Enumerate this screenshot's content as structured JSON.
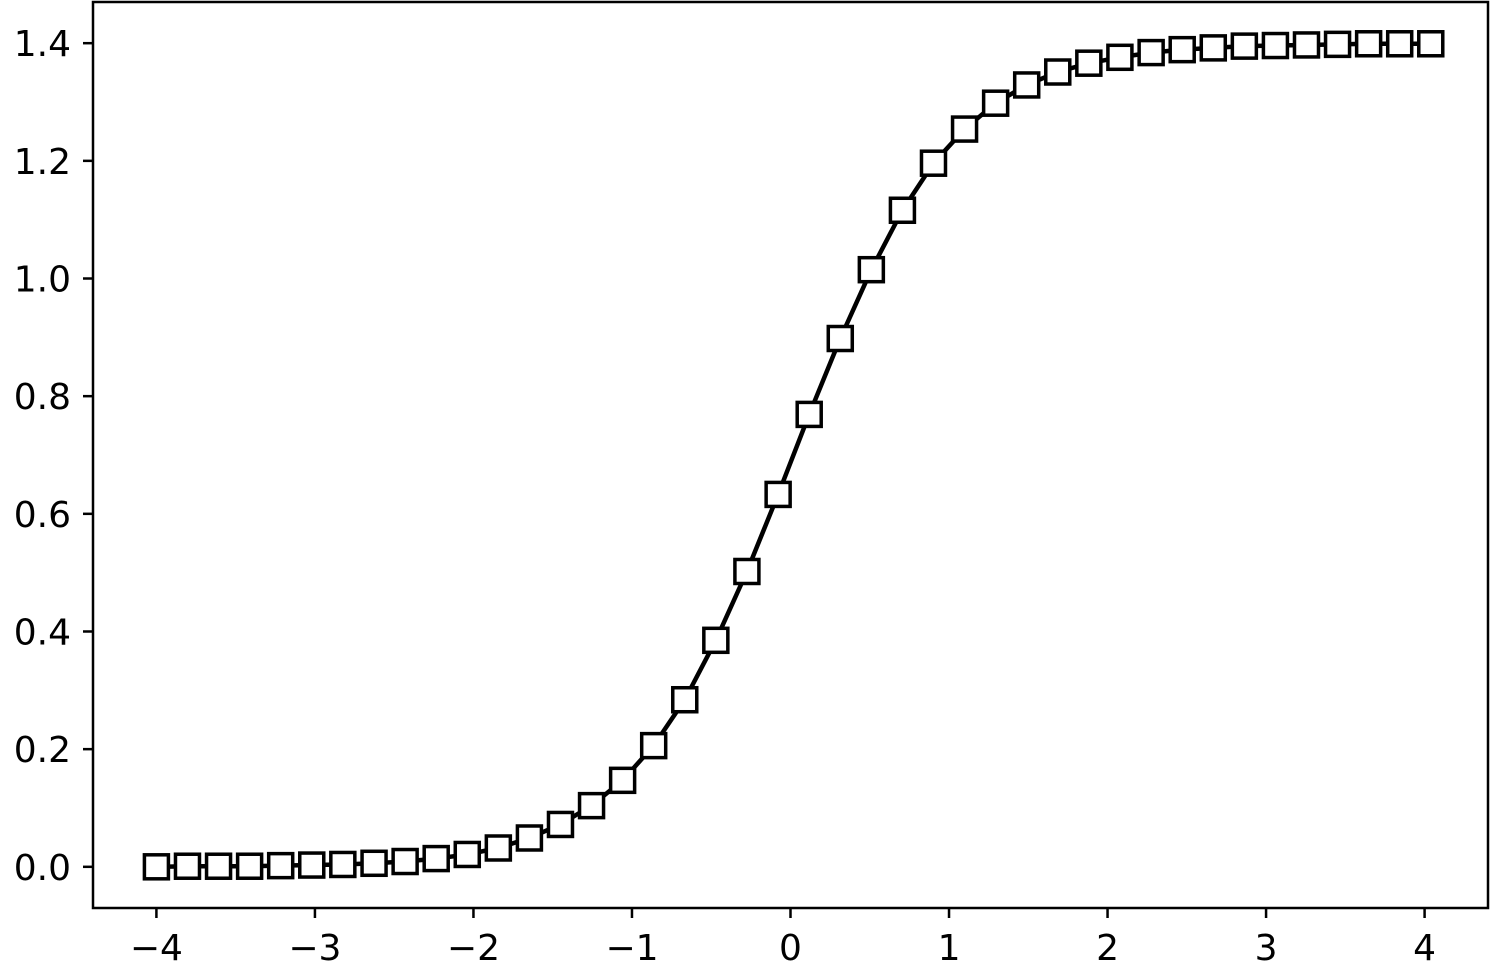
{
  "chart_data": {
    "type": "line",
    "title": "",
    "xlabel": "",
    "ylabel": "",
    "xlim": [
      -4.4,
      4.4
    ],
    "ylim": [
      -0.07,
      1.47
    ],
    "grid": false,
    "x_ticks": [
      -4,
      -3,
      -2,
      -1,
      0,
      1,
      2,
      3,
      4
    ],
    "x_tick_labels": [
      "−4",
      "−3",
      "−2",
      "−1",
      "0",
      "1",
      "2",
      "3",
      "4"
    ],
    "y_ticks": [
      0.0,
      0.2,
      0.4,
      0.6,
      0.8,
      1.0,
      1.2,
      1.4
    ],
    "y_tick_labels": [
      "0.0",
      "0.2",
      "0.4",
      "0.6",
      "0.8",
      "1.0",
      "1.2",
      "1.4"
    ],
    "series": [
      {
        "marker": "square-open",
        "color": "#000000",
        "x": [
          -4.0,
          -3.804,
          -3.608,
          -3.412,
          -3.216,
          -3.02,
          -2.824,
          -2.627,
          -2.431,
          -2.235,
          -2.039,
          -1.843,
          -1.647,
          -1.451,
          -1.255,
          -1.059,
          -0.863,
          -0.667,
          -0.471,
          -0.275,
          -0.078,
          0.118,
          0.314,
          0.51,
          0.706,
          0.902,
          1.098,
          1.294,
          1.49,
          1.686,
          1.882,
          2.078,
          2.275,
          2.471,
          2.667,
          2.863,
          3.059,
          3.255,
          3.451,
          3.647,
          3.843,
          4.039
        ],
        "y": [
          0.0,
          0.001,
          0.001,
          0.001,
          0.002,
          0.003,
          0.004,
          0.006,
          0.009,
          0.014,
          0.021,
          0.032,
          0.049,
          0.072,
          0.104,
          0.147,
          0.206,
          0.284,
          0.385,
          0.502,
          0.633,
          0.769,
          0.898,
          1.015,
          1.116,
          1.196,
          1.254,
          1.298,
          1.329,
          1.351,
          1.366,
          1.376,
          1.384,
          1.389,
          1.392,
          1.395,
          1.396,
          1.397,
          1.398,
          1.399,
          1.399,
          1.399
        ]
      }
    ]
  }
}
